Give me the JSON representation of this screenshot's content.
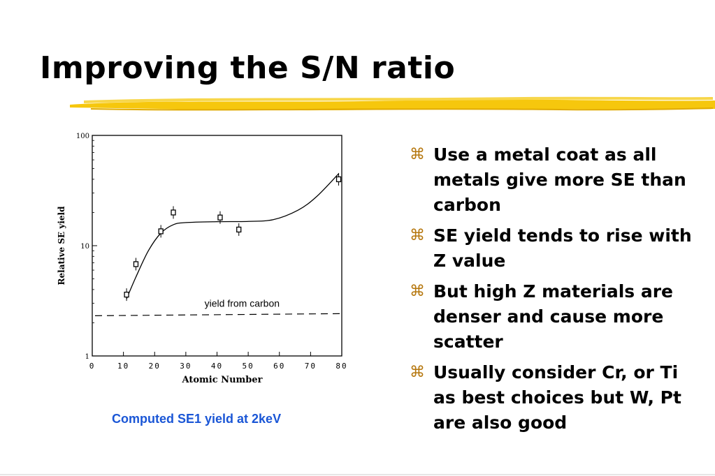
{
  "slide": {
    "title": "Improving the S/N ratio",
    "accent_color": "#f5c400"
  },
  "chart_caption": "Computed SE1 yield at 2keV",
  "bullets": [
    {
      "icon": "command-icon",
      "text": "Use a metal coat as all metals give more SE than carbon"
    },
    {
      "icon": "command-icon",
      "text": "SE yield tends to rise with Z value"
    },
    {
      "icon": "command-icon",
      "text": "But high Z materials are denser and cause more scatter"
    },
    {
      "icon": "command-icon",
      "text": "Usually consider Cr, or Ti as best choices but W, Pt are also good"
    }
  ],
  "chart_data": {
    "type": "scatter",
    "xlabel": "Atomic Number",
    "ylabel": "Relative SE yield",
    "xlim": [
      0,
      80
    ],
    "ylim": [
      1,
      100
    ],
    "yscale": "log",
    "x_ticks": [
      "0",
      "10",
      "20",
      "30",
      "40",
      "50",
      "60",
      "70",
      "80"
    ],
    "y_ticks": [
      "1",
      "10",
      "100"
    ],
    "points": [
      {
        "x": 11,
        "y": 3.6
      },
      {
        "x": 14,
        "y": 6.8
      },
      {
        "x": 22,
        "y": 13.5
      },
      {
        "x": 26,
        "y": 20
      },
      {
        "x": 41,
        "y": 18
      },
      {
        "x": 47,
        "y": 14
      },
      {
        "x": 79,
        "y": 40
      }
    ],
    "fit_curve": [
      {
        "x": 11,
        "y": 3.3
      },
      {
        "x": 14,
        "y": 5.2
      },
      {
        "x": 18,
        "y": 9.0
      },
      {
        "x": 22,
        "y": 13.0
      },
      {
        "x": 26,
        "y": 15.5
      },
      {
        "x": 30,
        "y": 16.2
      },
      {
        "x": 40,
        "y": 16.5
      },
      {
        "x": 50,
        "y": 16.6
      },
      {
        "x": 58,
        "y": 17.2
      },
      {
        "x": 66,
        "y": 21.0
      },
      {
        "x": 72,
        "y": 28.0
      },
      {
        "x": 79,
        "y": 45.0
      }
    ],
    "reference_line": {
      "label": "yield from carbon",
      "y": 2.35,
      "style": "dashed"
    },
    "grid": false
  }
}
